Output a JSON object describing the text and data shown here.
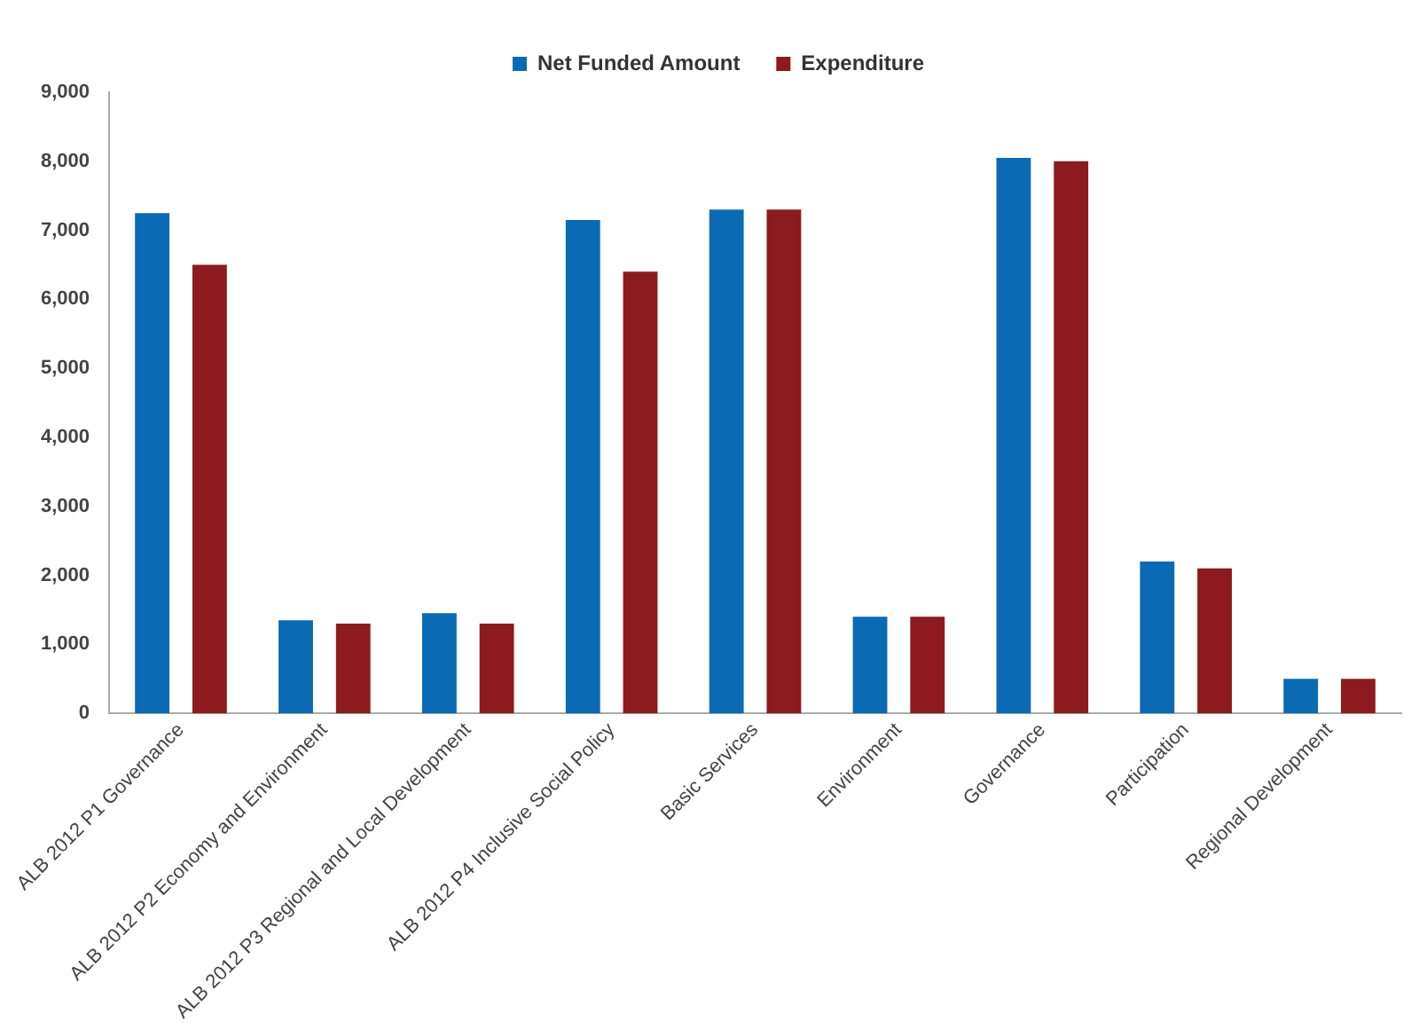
{
  "chart_data": {
    "type": "bar",
    "categories": [
      "ALB 2012 P1 Governance",
      "ALB 2012 P2 Economy and Environment",
      "ALB 2012 P3 Regional and Local Development",
      "ALB 2012 P4 Inclusive Social Policy",
      "Basic Services",
      "Environment",
      "Governance",
      "Participation",
      "Regional Development"
    ],
    "series": [
      {
        "name": "Net Funded Amount",
        "color": "#0a6ab4",
        "values": [
          7250,
          1350,
          1450,
          7150,
          7300,
          1400,
          8050,
          2200,
          500
        ]
      },
      {
        "name": "Expenditure",
        "color": "#8c1a1f",
        "values": [
          6500,
          1300,
          1300,
          6400,
          7300,
          1400,
          8000,
          2100,
          500
        ]
      }
    ],
    "ylim": [
      0,
      9000
    ],
    "yticks": [
      0,
      {
        "value": 1000,
        "label": "1,000"
      },
      {
        "value": 2000,
        "label": "2,000"
      },
      {
        "value": 3000,
        "label": "3,000"
      },
      {
        "value": 4000,
        "label": "4,000"
      },
      {
        "value": 5000,
        "label": "5,000"
      },
      {
        "value": 6000,
        "label": "6,000"
      },
      {
        "value": 7000,
        "label": "7,000"
      },
      {
        "value": 8000,
        "label": "8,000"
      },
      {
        "value": 9000,
        "label": "9,000"
      }
    ],
    "grid": false,
    "legend": "top"
  }
}
